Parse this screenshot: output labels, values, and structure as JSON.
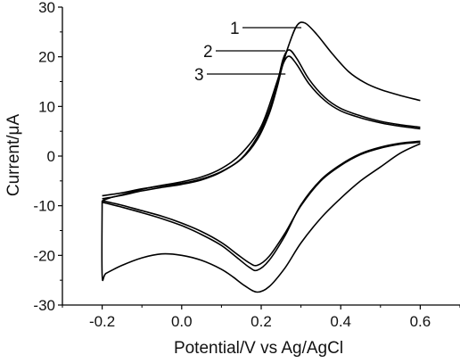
{
  "chart_data": {
    "type": "line",
    "title": "",
    "xlabel": "Potential/V vs Ag/AgCl",
    "ylabel": "Current/μA",
    "xlim": [
      -0.3,
      0.7
    ],
    "ylim": [
      -30,
      30
    ],
    "x_ticks": [
      -0.2,
      0.0,
      0.2,
      0.4,
      0.6
    ],
    "x_tick_labels": [
      "-0.2",
      "0.0",
      "0.2",
      "0.4",
      "0.6"
    ],
    "y_ticks": [
      -30,
      -20,
      -10,
      0,
      10,
      20,
      30
    ],
    "y_tick_labels": [
      "-30",
      "-20",
      "-10",
      "0",
      "10",
      "20",
      "30"
    ],
    "grid": false,
    "legend": "none",
    "series": [
      {
        "name": "1",
        "color": "#000000",
        "forward": [
          [
            -0.2,
            -9.0
          ],
          [
            -0.18,
            -8.4
          ],
          [
            -0.15,
            -7.8
          ],
          [
            -0.1,
            -6.7
          ],
          [
            -0.05,
            -5.9
          ],
          [
            0.0,
            -5.2
          ],
          [
            0.05,
            -4.2
          ],
          [
            0.1,
            -2.5
          ],
          [
            0.15,
            0.5
          ],
          [
            0.2,
            6.0
          ],
          [
            0.24,
            15.0
          ],
          [
            0.27,
            22.5
          ],
          [
            0.29,
            26.3
          ],
          [
            0.31,
            26.8
          ],
          [
            0.34,
            24.5
          ],
          [
            0.38,
            20.5
          ],
          [
            0.42,
            17.0
          ],
          [
            0.46,
            14.8
          ],
          [
            0.5,
            13.4
          ],
          [
            0.55,
            12.2
          ],
          [
            0.6,
            11.2
          ]
        ],
        "reverse": [
          [
            0.6,
            2.5
          ],
          [
            0.55,
            0.6
          ],
          [
            0.5,
            -2.2
          ],
          [
            0.45,
            -5.0
          ],
          [
            0.4,
            -8.5
          ],
          [
            0.35,
            -12.5
          ],
          [
            0.3,
            -17.5
          ],
          [
            0.26,
            -22.5
          ],
          [
            0.22,
            -26.3
          ],
          [
            0.19,
            -27.4
          ],
          [
            0.16,
            -26.2
          ],
          [
            0.13,
            -24.4
          ],
          [
            0.1,
            -22.8
          ],
          [
            0.05,
            -21.0
          ],
          [
            0.0,
            -20.0
          ],
          [
            -0.05,
            -19.7
          ],
          [
            -0.1,
            -20.5
          ],
          [
            -0.15,
            -22.0
          ],
          [
            -0.19,
            -23.6
          ],
          [
            -0.2,
            -24.0
          ],
          [
            -0.2,
            -9.0
          ]
        ]
      },
      {
        "name": "2",
        "color": "#000000",
        "forward": [
          [
            -0.2,
            -8.6
          ],
          [
            -0.15,
            -7.9
          ],
          [
            -0.1,
            -7.0
          ],
          [
            -0.05,
            -6.3
          ],
          [
            0.0,
            -5.7
          ],
          [
            0.05,
            -4.8
          ],
          [
            0.1,
            -3.2
          ],
          [
            0.15,
            -0.5
          ],
          [
            0.19,
            3.8
          ],
          [
            0.22,
            9.2
          ],
          [
            0.24,
            14.5
          ],
          [
            0.255,
            19.5
          ],
          [
            0.27,
            21.4
          ],
          [
            0.29,
            19.6
          ],
          [
            0.32,
            15.5
          ],
          [
            0.36,
            11.8
          ],
          [
            0.4,
            9.6
          ],
          [
            0.45,
            8.1
          ],
          [
            0.5,
            7.0
          ],
          [
            0.55,
            6.3
          ],
          [
            0.6,
            5.8
          ]
        ],
        "reverse": [
          [
            0.6,
            3.0
          ],
          [
            0.55,
            2.6
          ],
          [
            0.5,
            1.8
          ],
          [
            0.45,
            0.5
          ],
          [
            0.4,
            -1.7
          ],
          [
            0.35,
            -4.8
          ],
          [
            0.3,
            -9.8
          ],
          [
            0.26,
            -16.0
          ],
          [
            0.22,
            -21.0
          ],
          [
            0.19,
            -23.0
          ],
          [
            0.17,
            -22.4
          ],
          [
            0.14,
            -20.5
          ],
          [
            0.1,
            -18.0
          ],
          [
            0.05,
            -15.8
          ],
          [
            0.0,
            -14.0
          ],
          [
            -0.05,
            -12.6
          ],
          [
            -0.1,
            -11.4
          ],
          [
            -0.15,
            -10.3
          ],
          [
            -0.2,
            -9.3
          ]
        ]
      },
      {
        "name": "3",
        "color": "#000000",
        "forward": [
          [
            -0.2,
            -8.0
          ],
          [
            -0.15,
            -7.4
          ],
          [
            -0.1,
            -6.6
          ],
          [
            -0.05,
            -6.0
          ],
          [
            0.0,
            -5.5
          ],
          [
            0.05,
            -4.6
          ],
          [
            0.1,
            -3.1
          ],
          [
            0.15,
            -0.6
          ],
          [
            0.19,
            3.3
          ],
          [
            0.22,
            8.5
          ],
          [
            0.24,
            13.8
          ],
          [
            0.255,
            18.5
          ],
          [
            0.27,
            20.1
          ],
          [
            0.29,
            18.4
          ],
          [
            0.32,
            14.6
          ],
          [
            0.36,
            11.2
          ],
          [
            0.4,
            9.1
          ],
          [
            0.45,
            7.7
          ],
          [
            0.5,
            6.7
          ],
          [
            0.55,
            6.0
          ],
          [
            0.6,
            5.5
          ]
        ],
        "reverse": [
          [
            0.6,
            2.8
          ],
          [
            0.55,
            2.4
          ],
          [
            0.5,
            1.6
          ],
          [
            0.45,
            0.3
          ],
          [
            0.4,
            -1.9
          ],
          [
            0.35,
            -5.0
          ],
          [
            0.3,
            -10.0
          ],
          [
            0.26,
            -15.5
          ],
          [
            0.22,
            -20.2
          ],
          [
            0.19,
            -22.0
          ],
          [
            0.17,
            -21.5
          ],
          [
            0.14,
            -19.8
          ],
          [
            0.1,
            -17.4
          ],
          [
            0.05,
            -15.2
          ],
          [
            0.0,
            -13.5
          ],
          [
            -0.05,
            -12.1
          ],
          [
            -0.1,
            -11.0
          ],
          [
            -0.15,
            -9.9
          ],
          [
            -0.2,
            -9.0
          ]
        ]
      }
    ],
    "annotations": [
      {
        "text": "1",
        "series": "1"
      },
      {
        "text": "2",
        "series": "2"
      },
      {
        "text": "3",
        "series": "3"
      }
    ]
  }
}
